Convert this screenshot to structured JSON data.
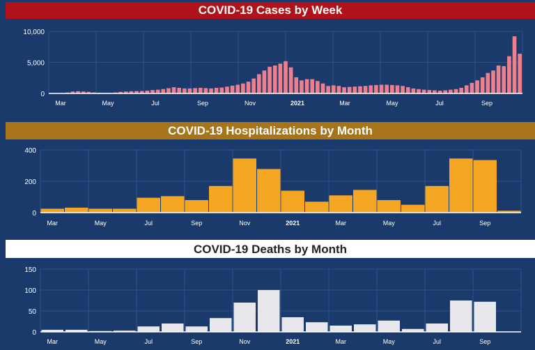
{
  "chart_data": [
    {
      "type": "bar",
      "title": "COVID-19 Cases by Week",
      "ylim": [
        0,
        10000
      ],
      "yticks": [
        0,
        5000,
        10000
      ],
      "ytick_labels": [
        "0",
        "5,000",
        "10,000"
      ],
      "xtick_labels": [
        "Mar",
        "May",
        "Jul",
        "Sep",
        "Nov",
        "2021",
        "Mar",
        "May",
        "Jul",
        "Sep"
      ],
      "bold_xtick": "2021",
      "bar_color": "#f07f8e",
      "grid": true,
      "values": [
        10,
        30,
        80,
        150,
        300,
        350,
        300,
        250,
        150,
        120,
        100,
        100,
        150,
        250,
        300,
        350,
        380,
        400,
        450,
        550,
        600,
        700,
        850,
        1000,
        900,
        800,
        800,
        850,
        900,
        850,
        800,
        900,
        950,
        1100,
        1250,
        1400,
        1600,
        1900,
        2400,
        3100,
        3700,
        4300,
        4500,
        4800,
        5200,
        4200,
        2600,
        2100,
        2300,
        2300,
        2000,
        1600,
        1200,
        1300,
        1200,
        1000,
        1050,
        1100,
        1150,
        1200,
        1300,
        1350,
        1400,
        1400,
        1350,
        1300,
        1200,
        1000,
        800,
        700,
        600,
        550,
        500,
        450,
        500,
        600,
        700,
        900,
        1300,
        1700,
        2100,
        2600,
        3300,
        3700,
        4500,
        4400,
        6000,
        9200,
        6400
      ]
    },
    {
      "type": "bar",
      "title": "COVID-19 Hospitalizations by Month",
      "ylim": [
        0,
        400
      ],
      "yticks": [
        0,
        200,
        400
      ],
      "ytick_labels": [
        "0",
        "200",
        "400"
      ],
      "categories": [
        "Mar",
        "Apr",
        "May",
        "Jun",
        "Jul",
        "Aug",
        "Sep",
        "Oct",
        "Nov",
        "Dec",
        "Jan",
        "Feb",
        "Mar",
        "Apr",
        "May",
        "Jun",
        "Jul",
        "Aug",
        "Sep",
        "Oct"
      ],
      "xtick_labels": [
        "Mar",
        "May",
        "Jul",
        "Sep",
        "Nov",
        "2021",
        "Mar",
        "May",
        "Jul",
        "Sep"
      ],
      "bold_xtick": "2021",
      "bar_color": "#f5a623",
      "grid": true,
      "values": [
        25,
        32,
        25,
        25,
        95,
        105,
        80,
        170,
        345,
        278,
        140,
        70,
        110,
        145,
        80,
        50,
        170,
        345,
        335,
        12
      ]
    },
    {
      "type": "bar",
      "title": "COVID-19 Deaths by Month",
      "ylim": [
        0,
        150
      ],
      "yticks": [
        0,
        50,
        100,
        150
      ],
      "ytick_labels": [
        "0",
        "50",
        "100",
        "150"
      ],
      "categories": [
        "Mar",
        "Apr",
        "May",
        "Jun",
        "Jul",
        "Aug",
        "Sep",
        "Oct",
        "Nov",
        "Dec",
        "Jan",
        "Feb",
        "Mar",
        "Apr",
        "May",
        "Jun",
        "Jul",
        "Aug",
        "Sep",
        "Oct"
      ],
      "xtick_labels": [
        "Mar",
        "May",
        "Jul",
        "Sep",
        "Nov",
        "2021",
        "Mar",
        "May",
        "Jul",
        "Sep"
      ],
      "bold_xtick": "2021",
      "bar_color": "#e8e8ec",
      "grid": true,
      "values": [
        5,
        5,
        2,
        3,
        13,
        20,
        13,
        33,
        70,
        100,
        35,
        23,
        15,
        18,
        27,
        7,
        20,
        75,
        72,
        1
      ]
    }
  ]
}
